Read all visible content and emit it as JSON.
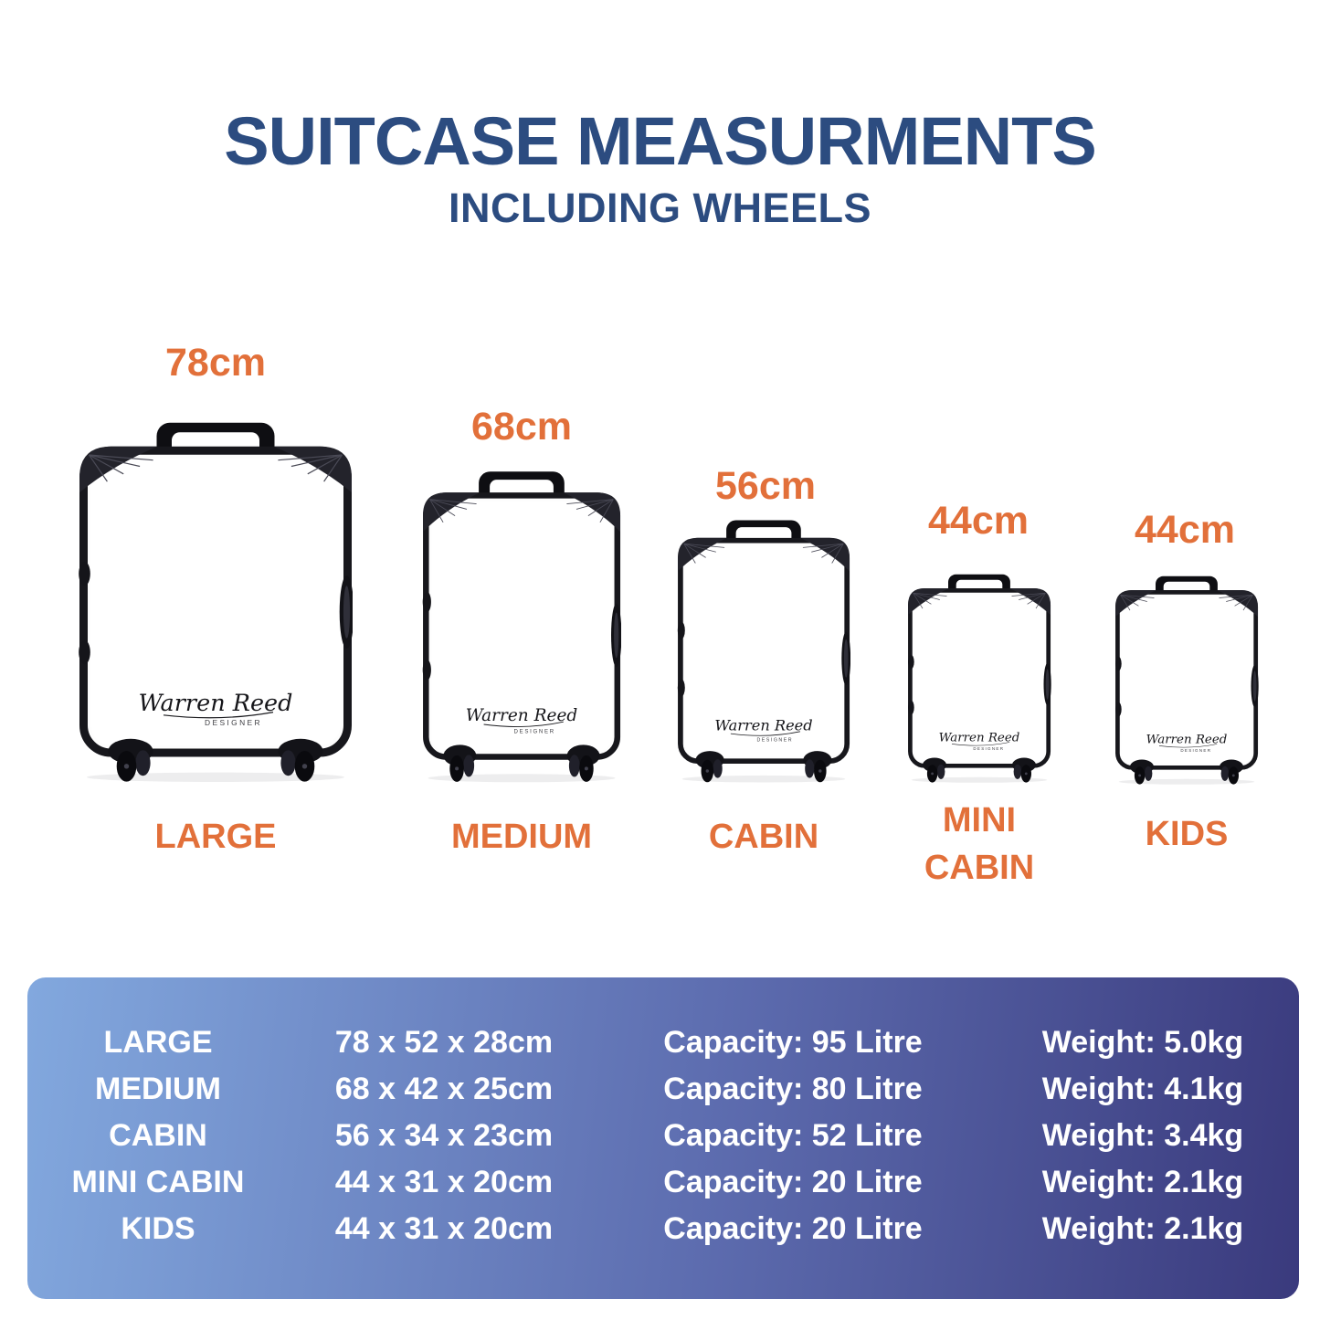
{
  "header": {
    "title": "SUITCASE MEASURMENTS",
    "subtitle": "INCLUDING WHEELS"
  },
  "signature": {
    "name": "Warren Reed",
    "role": "DESIGNER"
  },
  "suitcases": [
    {
      "id": "large",
      "height_label": "78cm",
      "name": "LARGE"
    },
    {
      "id": "medium",
      "height_label": "68cm",
      "name": "MEDIUM"
    },
    {
      "id": "cabin",
      "height_label": "56cm",
      "name": "CABIN"
    },
    {
      "id": "mini-cabin",
      "height_label": "44cm",
      "name": "MINI CABIN"
    },
    {
      "id": "kids",
      "height_label": "44cm",
      "name": "KIDS"
    }
  ],
  "spec_table": {
    "rows": [
      {
        "size": "LARGE",
        "dimensions": "78 x 52 x 28cm",
        "capacity": "Capacity: 95 Litre",
        "weight": "Weight: 5.0kg"
      },
      {
        "size": "MEDIUM",
        "dimensions": "68 x 42 x 25cm",
        "capacity": "Capacity: 80 Litre",
        "weight": "Weight: 4.1kg"
      },
      {
        "size": "CABIN",
        "dimensions": "56 x 34 x 23cm",
        "capacity": "Capacity: 52 Litre",
        "weight": "Weight: 3.4kg"
      },
      {
        "size": "MINI CABIN",
        "dimensions": "44 x 31 x 20cm",
        "capacity": "Capacity: 20 Litre",
        "weight": "Weight: 2.1kg"
      },
      {
        "size": "KIDS",
        "dimensions": "44 x 31 x 20cm",
        "capacity": "Capacity: 20 Litre",
        "weight": "Weight: 2.1kg"
      }
    ]
  },
  "colors": {
    "title": "#2c4c80",
    "accent": "#e2703a",
    "panel_gradient_start": "#82a8de",
    "panel_gradient_mid": "#5c6bae",
    "panel_gradient_end": "#3a3a7d",
    "text_on_panel": "#ffffff"
  }
}
